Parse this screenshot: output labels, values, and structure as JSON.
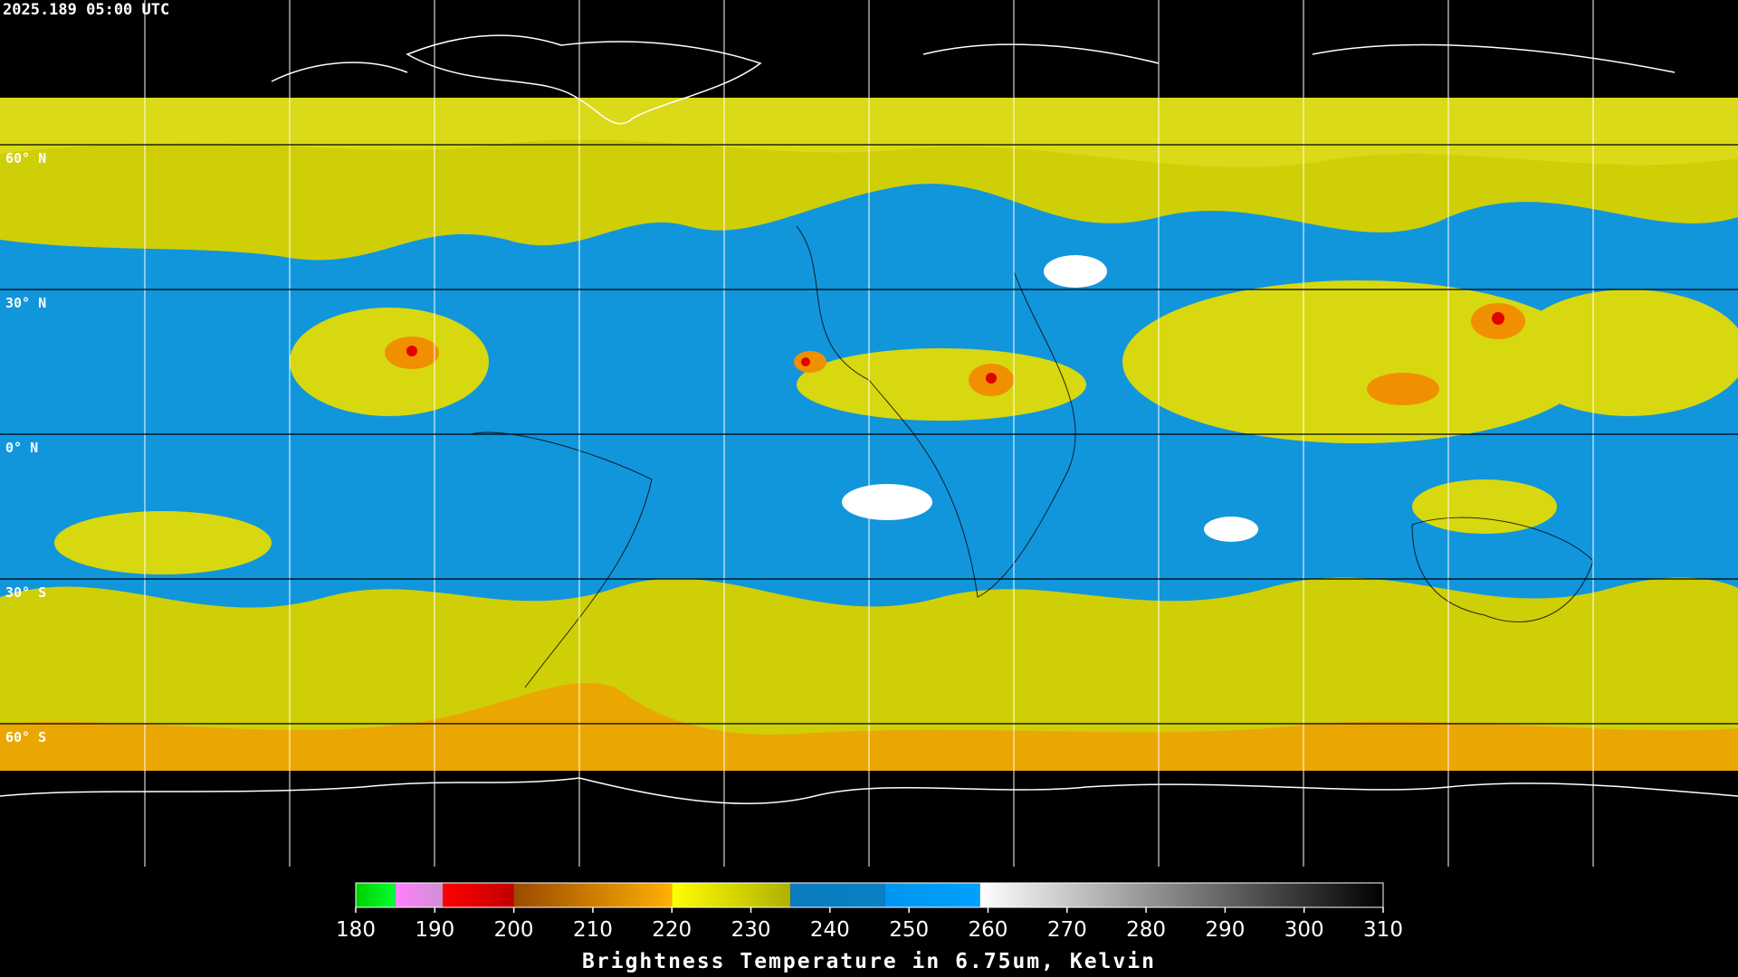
{
  "timestamp": "2025.189 05:00 UTC",
  "parallels": [
    {
      "value": 60,
      "label": "60° N"
    },
    {
      "value": 30,
      "label": "30° N"
    },
    {
      "value": 0,
      "label": "0° N"
    },
    {
      "value": -30,
      "label": "30° S"
    },
    {
      "value": -60,
      "label": "60° S"
    }
  ],
  "meridians": [
    -150,
    -120,
    -90,
    -60,
    -30,
    0,
    30,
    60,
    90,
    120,
    150
  ],
  "colorbar": {
    "title": "Brightness Temperature in 6.75um, Kelvin",
    "lim": [
      180,
      310
    ],
    "ticks": [
      180,
      190,
      200,
      210,
      220,
      230,
      240,
      250,
      260,
      270,
      280,
      290,
      300,
      310
    ],
    "segments": [
      {
        "from": 180,
        "to": 185,
        "colors": [
          "#00d000",
          "#00ff30"
        ]
      },
      {
        "from": 185,
        "to": 191,
        "colors": [
          "#ff80ff",
          "#d090d0"
        ]
      },
      {
        "from": 191,
        "to": 200,
        "colors": [
          "#ff0000",
          "#c00000"
        ]
      },
      {
        "from": 200,
        "to": 220,
        "colors": [
          "#9a4a00",
          "#ffb000"
        ]
      },
      {
        "from": 220,
        "to": 235,
        "colors": [
          "#ffff00",
          "#b0b000"
        ]
      },
      {
        "from": 235,
        "to": 247,
        "colors": [
          "#0a7cc0",
          "#0a80c4"
        ]
      },
      {
        "from": 247,
        "to": 259,
        "colors": [
          "#0096f0",
          "#00a0ff"
        ]
      },
      {
        "from": 259,
        "to": 310,
        "colors": [
          "#ffffff",
          "#000000"
        ]
      }
    ]
  }
}
